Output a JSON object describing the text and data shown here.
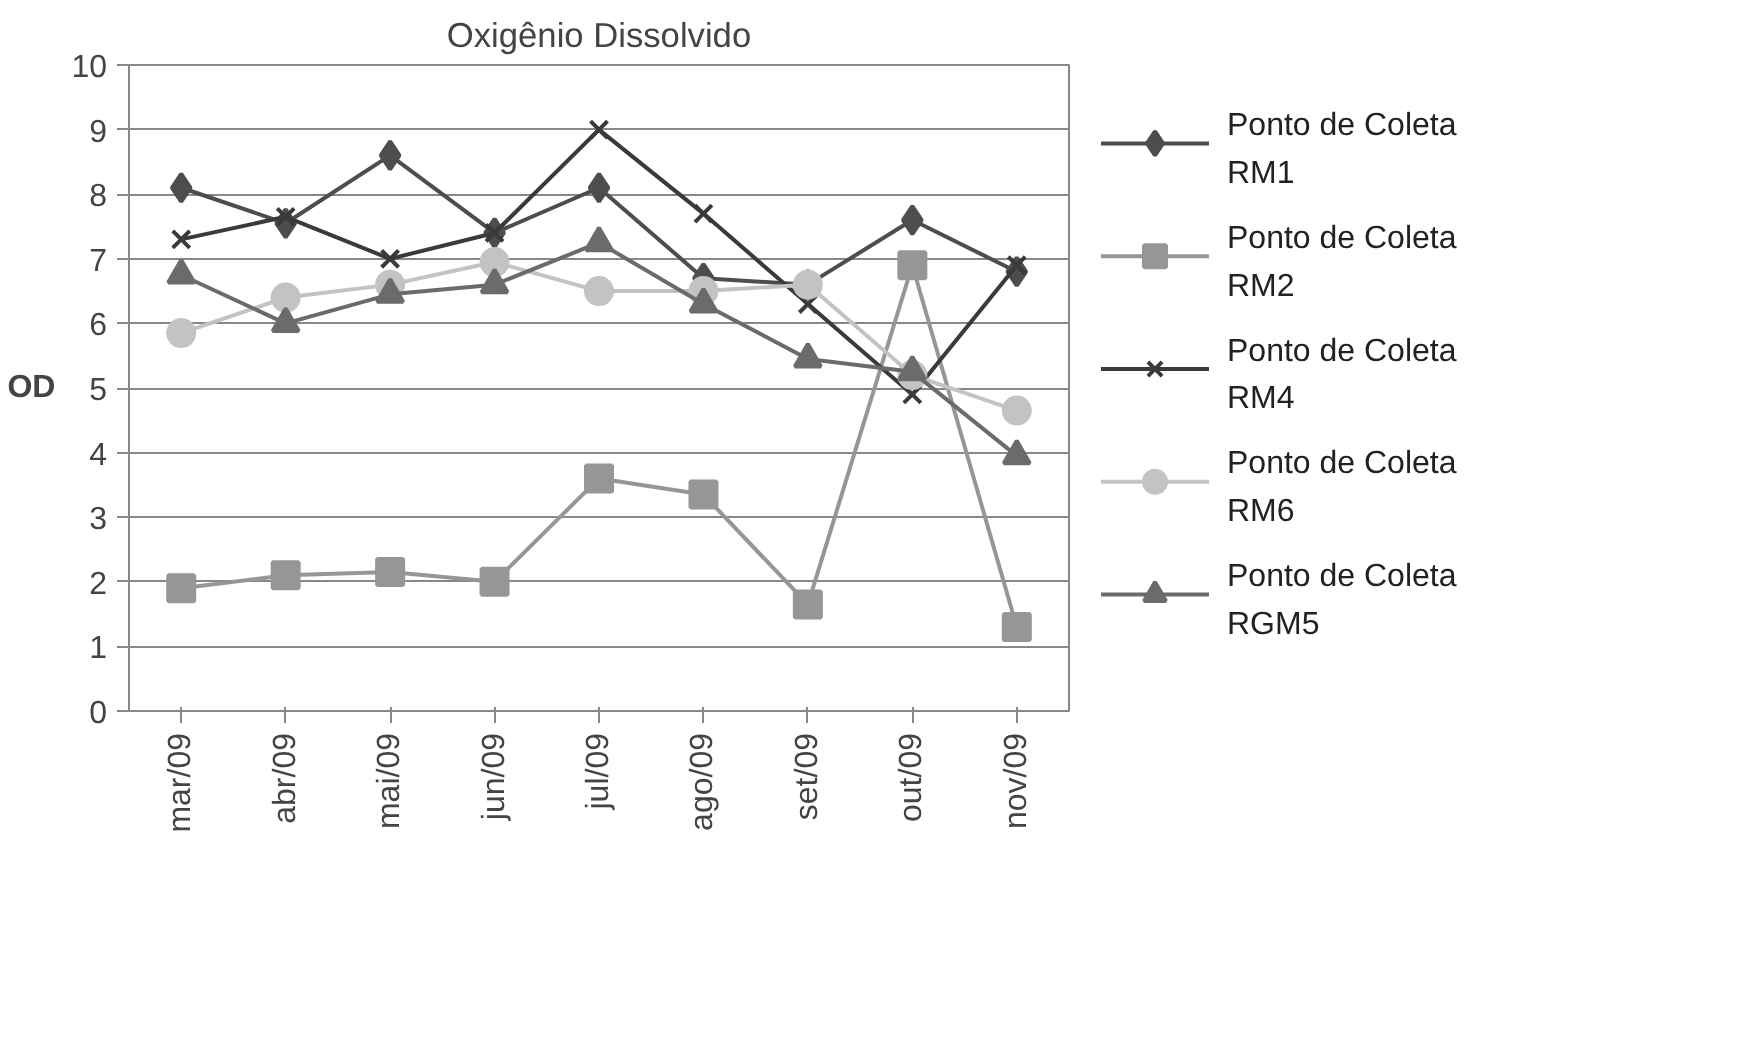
{
  "chart_data": {
    "type": "line",
    "title": "Oxigênio Dissolvido",
    "ylabel": "OD",
    "categories": [
      "mar/09",
      "abr/09",
      "mai/09",
      "jun/09",
      "jul/09",
      "ago/09",
      "set/09",
      "out/09",
      "nov/09"
    ],
    "series": [
      {
        "name": "Ponto de Coleta RM1",
        "color": "#4d4d4d",
        "marker": "diamond",
        "values": [
          8.1,
          7.55,
          8.6,
          7.4,
          8.1,
          6.7,
          6.6,
          7.6,
          6.8
        ]
      },
      {
        "name": "Ponto de Coleta RM2",
        "color": "#969696",
        "marker": "square",
        "values": [
          1.9,
          2.1,
          2.15,
          2.0,
          3.6,
          3.35,
          1.65,
          6.9,
          1.3
        ]
      },
      {
        "name": "Ponto de Coleta RM4",
        "color": "#3a3a3a",
        "marker": "cross",
        "values": [
          7.3,
          7.65,
          7.0,
          7.4,
          9.0,
          7.7,
          6.3,
          4.9,
          6.9
        ]
      },
      {
        "name": "Ponto de Coleta RM6",
        "color": "#c3c3c3",
        "marker": "circle",
        "values": [
          5.85,
          6.4,
          6.6,
          6.95,
          6.5,
          6.5,
          6.6,
          5.2,
          4.65
        ]
      },
      {
        "name": "Ponto de Coleta RGM5",
        "color": "#6b6b6b",
        "marker": "triangle",
        "values": [
          6.75,
          6.0,
          6.45,
          6.6,
          7.25,
          6.3,
          5.45,
          5.25,
          3.95
        ]
      }
    ],
    "ylim": [
      0,
      10
    ],
    "yticks": [
      0,
      1,
      2,
      3,
      4,
      5,
      6,
      7,
      8,
      9,
      10
    ],
    "grid": "y",
    "legend": "right"
  }
}
